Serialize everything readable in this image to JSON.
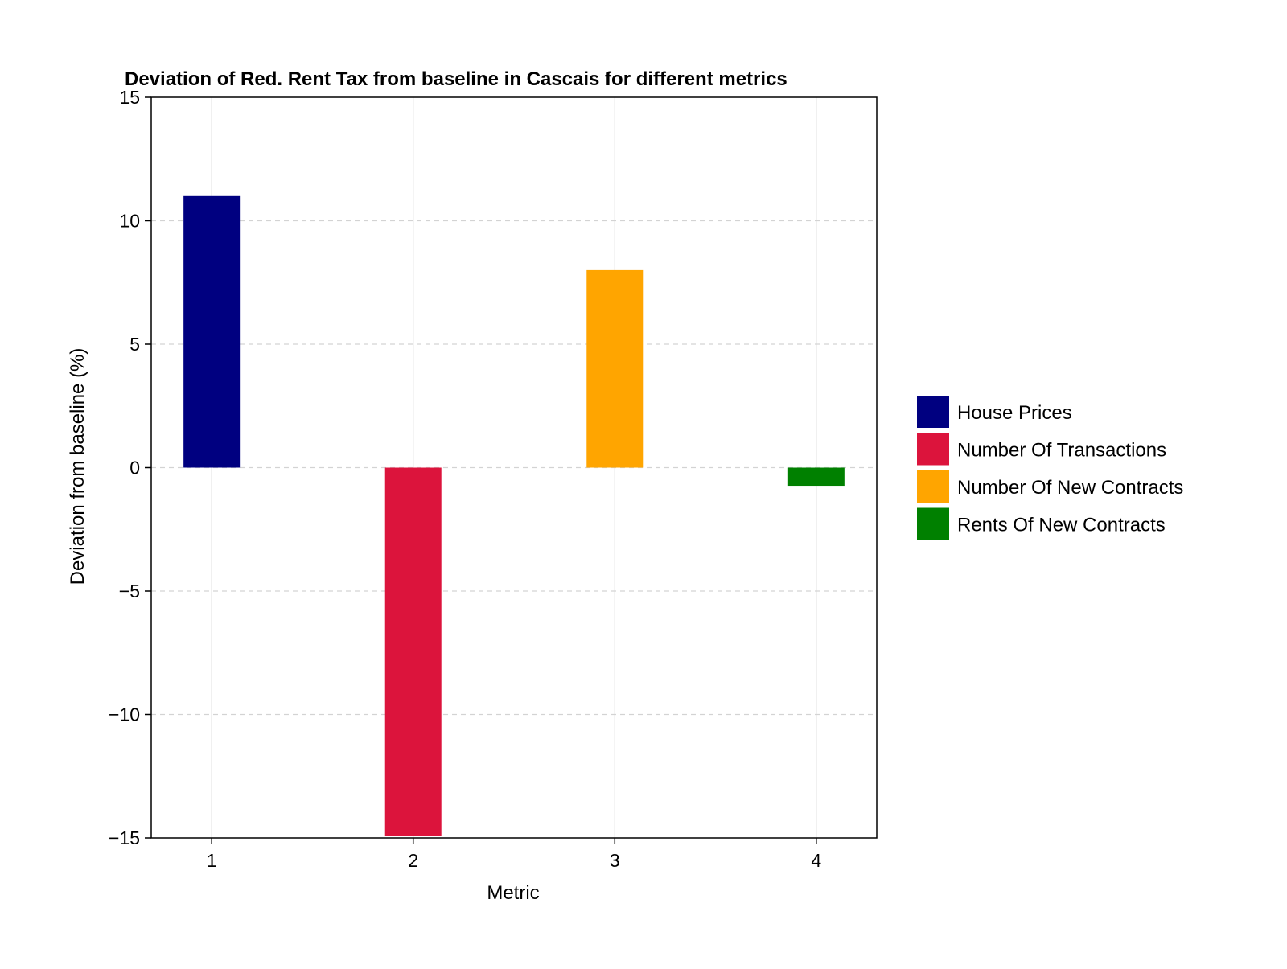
{
  "chart_data": {
    "type": "bar",
    "title": "Deviation of Red. Rent Tax from baseline in Cascais for different metrics",
    "xlabel": "Metric",
    "ylabel": "Deviation from baseline (%)",
    "categories": [
      "1",
      "2",
      "3",
      "4"
    ],
    "x": [
      1,
      2,
      3,
      4
    ],
    "values": [
      11,
      -15,
      8,
      -0.8
    ],
    "series": [
      {
        "name": "House Prices",
        "x": 1,
        "value": 11,
        "color": "#000080"
      },
      {
        "name": "Number Of Transactions",
        "x": 2,
        "value": -15,
        "color": "#DC143C"
      },
      {
        "name": "Number Of New Contracts",
        "x": 3,
        "value": 8,
        "color": "#FFA500"
      },
      {
        "name": "Rents Of New Contracts",
        "x": 4,
        "value": -0.8,
        "color": "#008000"
      }
    ],
    "ylim": [
      -15,
      15
    ],
    "xlim": [
      0.7,
      4.3
    ],
    "yticks": [
      -15,
      -10,
      -5,
      0,
      5,
      10,
      15
    ],
    "ytick_labels": [
      "−15",
      "−10",
      "−5",
      "0",
      "5",
      "10",
      "15"
    ],
    "xticks": [
      1,
      2,
      3,
      4
    ],
    "xtick_labels": [
      "1",
      "2",
      "3",
      "4"
    ],
    "grid": true,
    "legend_position": "right"
  }
}
